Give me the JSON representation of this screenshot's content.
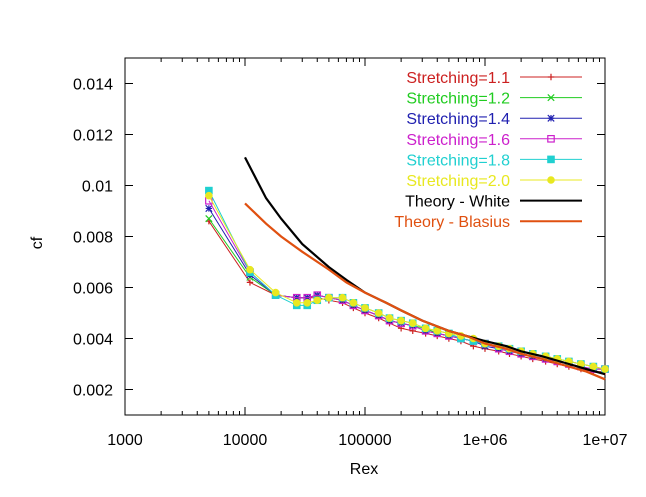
{
  "chart_data": {
    "type": "line",
    "title": "",
    "xlabel": "Rex",
    "ylabel": "cf",
    "x_scale": "log",
    "xlim": [
      1000,
      10000000
    ],
    "ylim": [
      0.001,
      0.015
    ],
    "x_tick_values": [
      1000,
      10000,
      100000,
      1000000,
      10000000
    ],
    "x_tick_labels": [
      "1000",
      "10000",
      "100000",
      "1e+06",
      "1e+07"
    ],
    "y_tick_values": [
      0.002,
      0.004,
      0.006,
      0.008,
      0.01,
      0.012,
      0.014
    ],
    "y_tick_labels": [
      "0.002",
      "0.004",
      "0.006",
      "0.008",
      "0.01",
      "0.012",
      "0.014"
    ],
    "legend_position": "top-right",
    "grid": false,
    "series": [
      {
        "name": "Stretching=1.1",
        "color": "#cc2020",
        "marker": "plus",
        "x": [
          5000,
          11000,
          18000,
          27000,
          33000,
          40000,
          50000,
          65000,
          80000,
          100000,
          130000,
          160000,
          200000,
          250000,
          320000,
          400000,
          500000,
          630000,
          800000,
          1000000,
          1300000,
          1600000,
          2000000,
          2500000,
          3200000,
          4000000,
          5000000,
          6300000,
          8000000,
          10000000
        ],
        "y": [
          0.0086,
          0.0062,
          0.0057,
          0.0056,
          0.0056,
          0.0056,
          0.0055,
          0.0054,
          0.0052,
          0.005,
          0.0048,
          0.0046,
          0.0044,
          0.0043,
          0.0042,
          0.0041,
          0.004,
          0.0039,
          0.0037,
          0.0036,
          0.0035,
          0.0034,
          0.0033,
          0.0032,
          0.0031,
          0.003,
          0.0029,
          0.0028,
          0.0027,
          0.0027
        ]
      },
      {
        "name": "Stretching=1.2",
        "color": "#20cc20",
        "marker": "cross",
        "x": [
          5000,
          11000,
          18000,
          27000,
          33000,
          40000,
          50000,
          65000,
          80000,
          100000,
          130000,
          160000,
          200000,
          250000,
          320000,
          400000,
          500000,
          630000,
          800000,
          1000000,
          1300000,
          1600000,
          2000000,
          2500000,
          3200000,
          4000000,
          5000000,
          6300000,
          8000000,
          10000000
        ],
        "y": [
          0.0087,
          0.0064,
          0.0057,
          0.0056,
          0.0056,
          0.0057,
          0.0056,
          0.0055,
          0.0053,
          0.0051,
          0.0049,
          0.0047,
          0.0046,
          0.0045,
          0.0044,
          0.0042,
          0.0041,
          0.004,
          0.0039,
          0.0038,
          0.0037,
          0.0036,
          0.0035,
          0.0034,
          0.0033,
          0.0032,
          0.0031,
          0.003,
          0.0029,
          0.0028
        ]
      },
      {
        "name": "Stretching=1.4",
        "color": "#2020b0",
        "marker": "star",
        "x": [
          5000,
          11000,
          18000,
          27000,
          33000,
          40000,
          50000,
          65000,
          80000,
          100000,
          130000,
          160000,
          200000,
          250000,
          320000,
          400000,
          500000,
          630000,
          800000,
          1000000,
          1300000,
          1600000,
          2000000,
          2500000,
          3200000,
          4000000,
          5000000,
          6300000,
          8000000,
          10000000
        ],
        "y": [
          0.0091,
          0.0065,
          0.0057,
          0.0056,
          0.0056,
          0.0057,
          0.0056,
          0.0055,
          0.0053,
          0.0051,
          0.0049,
          0.0047,
          0.0046,
          0.0045,
          0.0043,
          0.0042,
          0.0041,
          0.004,
          0.0039,
          0.0037,
          0.0036,
          0.0035,
          0.0034,
          0.0033,
          0.0032,
          0.0031,
          0.003,
          0.0029,
          0.0028,
          0.0028
        ]
      },
      {
        "name": "Stretching=1.6",
        "color": "#cc20cc",
        "marker": "open-square",
        "x": [
          5000,
          11000,
          18000,
          27000,
          33000,
          40000,
          50000,
          65000,
          80000,
          100000,
          130000,
          160000,
          200000,
          250000,
          320000,
          400000,
          500000,
          630000,
          800000,
          1000000,
          1300000,
          1600000,
          2000000,
          2500000,
          3200000,
          4000000,
          5000000,
          6300000,
          8000000,
          10000000
        ],
        "y": [
          0.0094,
          0.0066,
          0.0057,
          0.0056,
          0.0056,
          0.0057,
          0.0056,
          0.0055,
          0.0053,
          0.0051,
          0.0049,
          0.0047,
          0.0046,
          0.0045,
          0.0043,
          0.0042,
          0.0041,
          0.004,
          0.0039,
          0.0038,
          0.0036,
          0.0035,
          0.0034,
          0.0033,
          0.0032,
          0.0031,
          0.003,
          0.0029,
          0.0028,
          0.0028
        ]
      },
      {
        "name": "Stretching=1.8",
        "color": "#20d0d0",
        "marker": "filled-square",
        "x": [
          5000,
          11000,
          18000,
          27000,
          33000,
          40000,
          50000,
          65000,
          80000,
          100000,
          130000,
          160000,
          200000,
          250000,
          320000,
          400000,
          500000,
          630000,
          800000,
          1000000,
          1300000,
          1600000,
          2000000,
          2500000,
          3200000,
          4000000,
          5000000,
          6300000,
          8000000,
          10000000
        ],
        "y": [
          0.0098,
          0.0066,
          0.0057,
          0.0053,
          0.0053,
          0.0055,
          0.0056,
          0.0056,
          0.0054,
          0.0052,
          0.005,
          0.0048,
          0.0047,
          0.0046,
          0.0044,
          0.0043,
          0.0042,
          0.004,
          0.0039,
          0.0038,
          0.0037,
          0.0036,
          0.0035,
          0.0034,
          0.0033,
          0.0032,
          0.0031,
          0.003,
          0.0029,
          0.0028
        ]
      },
      {
        "name": "Stretching=2.0",
        "color": "#e8e820",
        "marker": "filled-circle",
        "x": [
          5000,
          11000,
          18000,
          27000,
          33000,
          40000,
          50000,
          65000,
          80000,
          100000,
          130000,
          160000,
          200000,
          250000,
          320000,
          400000,
          500000,
          630000,
          800000,
          1000000,
          1300000,
          1600000,
          2000000,
          2500000,
          3200000,
          4000000,
          5000000,
          6300000,
          8000000,
          10000000
        ],
        "y": [
          0.0096,
          0.0067,
          0.0058,
          0.0054,
          0.0054,
          0.0055,
          0.0056,
          0.0056,
          0.0054,
          0.0052,
          0.005,
          0.0048,
          0.0047,
          0.0046,
          0.0044,
          0.0043,
          0.0042,
          0.0041,
          0.004,
          0.0038,
          0.0037,
          0.0036,
          0.0035,
          0.0034,
          0.0033,
          0.0032,
          0.0031,
          0.003,
          0.0029,
          0.0028
        ]
      },
      {
        "name": "Theory - White",
        "color": "#000000",
        "marker": "none",
        "x": [
          10000,
          15000,
          20000,
          30000,
          50000,
          70000,
          100000,
          150000,
          200000,
          300000,
          500000,
          700000,
          1000000,
          1500000,
          2000000,
          3000000,
          5000000,
          7000000,
          10000000
        ],
        "y": [
          0.0111,
          0.0095,
          0.0087,
          0.0077,
          0.0068,
          0.0063,
          0.0058,
          0.0054,
          0.0051,
          0.0047,
          0.0043,
          0.0041,
          0.0039,
          0.0037,
          0.0035,
          0.0033,
          0.003,
          0.0028,
          0.0026
        ]
      },
      {
        "name": "Theory - Blasius",
        "color": "#e05010",
        "marker": "none",
        "x": [
          10000,
          15000,
          20000,
          30000,
          50000,
          70000,
          100000,
          150000,
          200000,
          300000,
          500000,
          700000,
          1000000,
          1500000,
          2000000,
          3000000,
          5000000,
          7000000,
          10000000
        ],
        "y": [
          0.0093,
          0.0085,
          0.008,
          0.0074,
          0.0067,
          0.0062,
          0.0058,
          0.0054,
          0.0051,
          0.0047,
          0.0043,
          0.0041,
          0.0038,
          0.0036,
          0.0034,
          0.0032,
          0.0029,
          0.0027,
          0.0024
        ]
      }
    ]
  }
}
